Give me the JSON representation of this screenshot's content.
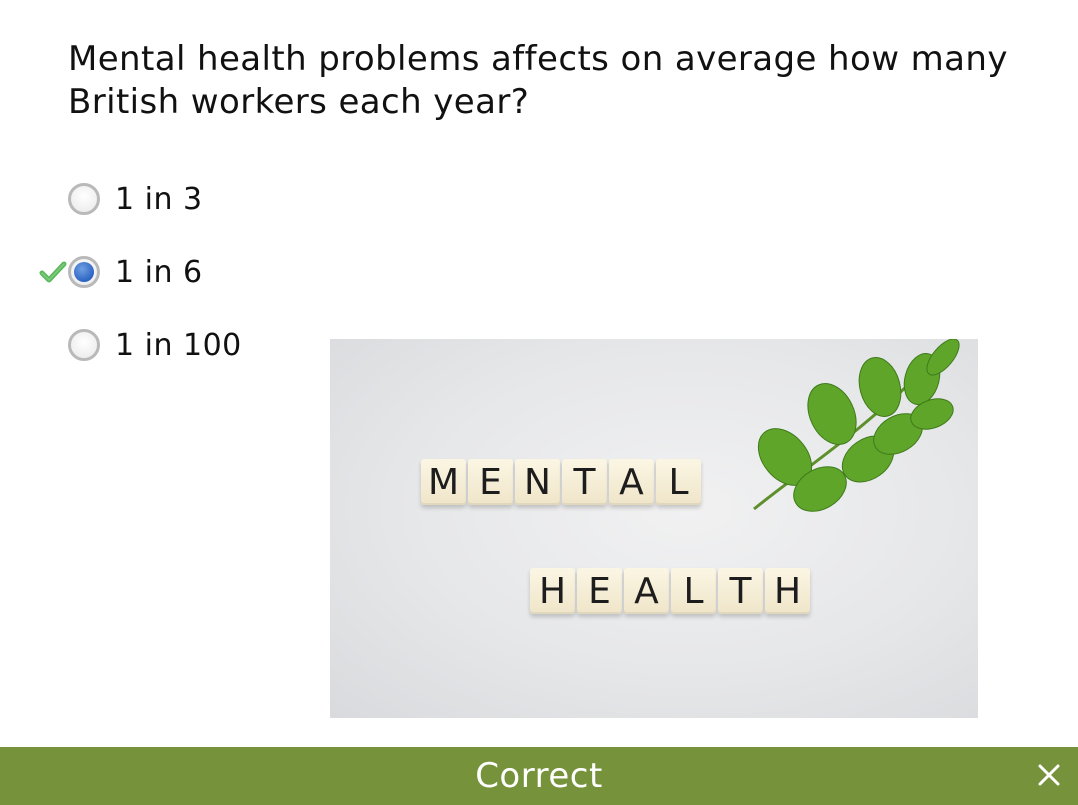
{
  "question": {
    "text": "Mental health problems affects on average how many British workers each year?"
  },
  "options": [
    {
      "label": "1 in 3",
      "selected": false,
      "correct_mark": false
    },
    {
      "label": "1 in 6",
      "selected": true,
      "correct_mark": true
    },
    {
      "label": "1 in 100",
      "selected": false,
      "correct_mark": false
    }
  ],
  "illustration": {
    "tiles_word_1": [
      "M",
      "E",
      "N",
      "T",
      "A",
      "L"
    ],
    "tiles_word_2": [
      "H",
      "E",
      "A",
      "L",
      "T",
      "H"
    ]
  },
  "feedback": {
    "text": "Correct",
    "close_icon": "close-icon"
  },
  "colors": {
    "feedback_bar": "#76923b",
    "radio_selected": "#2d64c3",
    "check_mark": "#5cb85c"
  }
}
